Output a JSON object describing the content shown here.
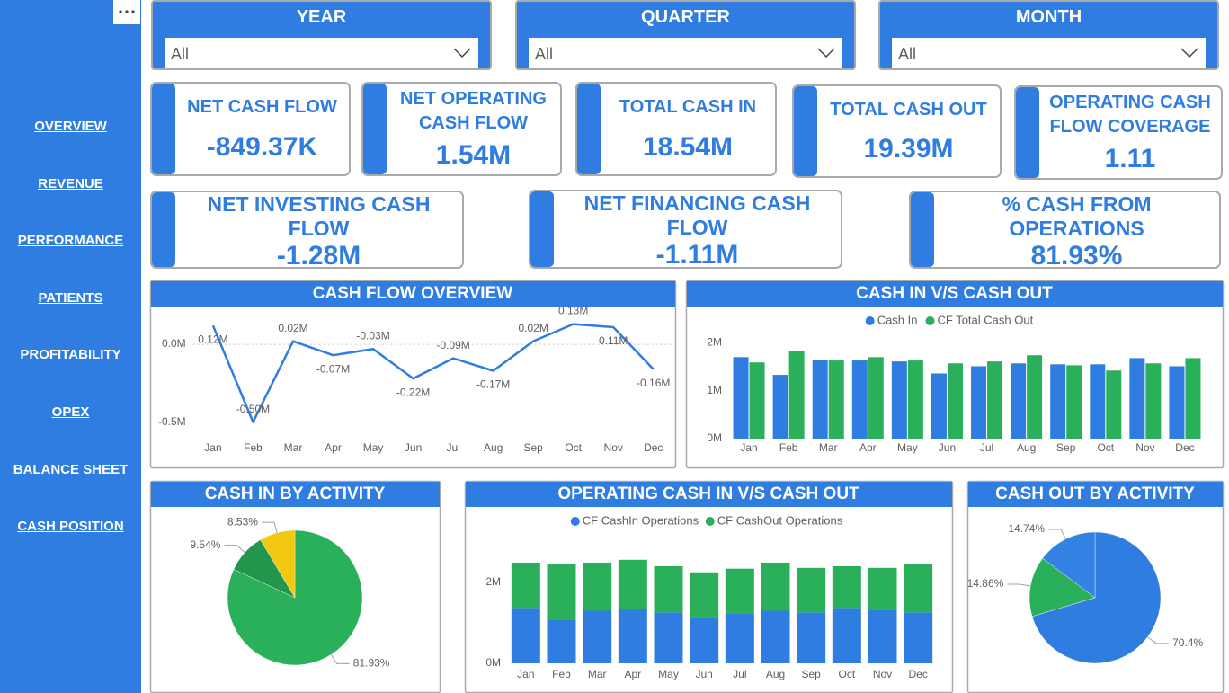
{
  "nav": [
    "OVERVIEW",
    "REVENUE",
    "PERFORMANCE",
    "PATIENTS",
    "PROFITABILITY",
    "OPEX",
    "BALANCE SHEET",
    "CASH POSITION"
  ],
  "filters": [
    {
      "title": "YEAR",
      "value": "All"
    },
    {
      "title": "QUARTER",
      "value": "All"
    },
    {
      "title": "MONTH",
      "value": "All"
    }
  ],
  "kpis": [
    {
      "label": "NET CASH FLOW",
      "value": "-849.37K"
    },
    {
      "label": "NET OPERATING CASH FLOW",
      "value": "1.54M"
    },
    {
      "label": "TOTAL CASH IN",
      "value": "18.54M"
    },
    {
      "label": "TOTAL CASH OUT",
      "value": "19.39M"
    },
    {
      "label": "OPERATING CASH FLOW COVERAGE",
      "value": "1.11"
    },
    {
      "label": "NET INVESTING CASH FLOW",
      "value": "-1.28M"
    },
    {
      "label": "NET FINANCING CASH FLOW",
      "value": "-1.11M"
    },
    {
      "label": "% CASH FROM OPERATIONS",
      "value": "81.93%"
    }
  ],
  "chart_data": [
    {
      "type": "line",
      "title": "CASH FLOW OVERVIEW",
      "categories": [
        "Jan",
        "Feb",
        "Mar",
        "Apr",
        "May",
        "Jun",
        "Jul",
        "Aug",
        "Sep",
        "Oct",
        "Nov",
        "Dec"
      ],
      "values": [
        0.12,
        -0.5,
        0.02,
        -0.07,
        -0.03,
        -0.22,
        -0.09,
        -0.17,
        0.02,
        0.13,
        0.11,
        -0.16
      ],
      "value_labels": [
        "0.12M",
        "-0.50M",
        "0.02M",
        "-0.07M",
        "-0.03M",
        "-0.22M",
        "-0.09M",
        "-0.17M",
        "0.02M",
        "0.13M",
        "0.11M",
        "-0.16M"
      ],
      "color": "#2f7de1",
      "ylim": [
        -0.56,
        0.22
      ],
      "yticks": [
        {
          "value": -0.5,
          "label": "-0.5M"
        },
        {
          "value": 0,
          "label": "0.0M"
        }
      ],
      "grid": true
    },
    {
      "type": "bar",
      "title": "CASH IN V/S CASH OUT",
      "categories": [
        "Jan",
        "Feb",
        "Mar",
        "Apr",
        "May",
        "Jun",
        "Jul",
        "Aug",
        "Sep",
        "Oct",
        "Nov",
        "Dec"
      ],
      "series": [
        {
          "name": "Cash In",
          "color": "#2f7de1",
          "values": [
            1.7,
            1.33,
            1.64,
            1.63,
            1.61,
            1.36,
            1.51,
            1.57,
            1.55,
            1.55,
            1.68,
            1.51
          ]
        },
        {
          "name": "CF Total Cash Out",
          "color": "#2ab05a",
          "values": [
            1.59,
            1.83,
            1.63,
            1.7,
            1.63,
            1.57,
            1.61,
            1.74,
            1.53,
            1.42,
            1.57,
            1.68
          ]
        }
      ],
      "ylim": [
        0,
        2.25
      ],
      "yticks": [
        {
          "value": 0,
          "label": "0M"
        },
        {
          "value": 1,
          "label": "1M"
        },
        {
          "value": 2,
          "label": "2M"
        }
      ],
      "grid": false,
      "legend": "top"
    },
    {
      "type": "pie",
      "title": "CASH IN BY ACTIVITY",
      "values": [
        81.93,
        9.54,
        8.53
      ],
      "value_labels": [
        "81.93%",
        "9.54%",
        "8.53%"
      ],
      "colors": [
        "#2ab05a",
        "#22964c",
        "#f2c811"
      ]
    },
    {
      "type": "stacked_bar",
      "title": "OPERATING CASH IN V/S CASH OUT",
      "categories": [
        "Jan",
        "Feb",
        "Mar",
        "Apr",
        "May",
        "Jun",
        "Jul",
        "Aug",
        "Sep",
        "Oct",
        "Nov",
        "Dec"
      ],
      "series": [
        {
          "name": "CF CashIn Operations",
          "color": "#2f7de1",
          "values": [
            1.37,
            1.08,
            1.3,
            1.35,
            1.26,
            1.12,
            1.24,
            1.3,
            1.26,
            1.37,
            1.33,
            1.26
          ]
        },
        {
          "name": "CF CashOut Operations",
          "color": "#2ab05a",
          "values": [
            1.12,
            1.37,
            1.19,
            1.21,
            1.14,
            1.13,
            1.1,
            1.19,
            1.1,
            1.03,
            1.03,
            1.19
          ]
        }
      ],
      "ylim": [
        0,
        2.8
      ],
      "yticks": [
        {
          "value": 0,
          "label": "0M"
        },
        {
          "value": 2,
          "label": "2M"
        }
      ],
      "grid": false,
      "legend": "top"
    },
    {
      "type": "pie",
      "title": "CASH OUT BY ACTIVITY",
      "values": [
        70.4,
        14.86,
        14.74
      ],
      "value_labels": [
        "70.4%",
        "14.86%",
        "14.74%"
      ],
      "colors": [
        "#2f7de1",
        "#2ab05a",
        "#3482e4"
      ]
    }
  ]
}
